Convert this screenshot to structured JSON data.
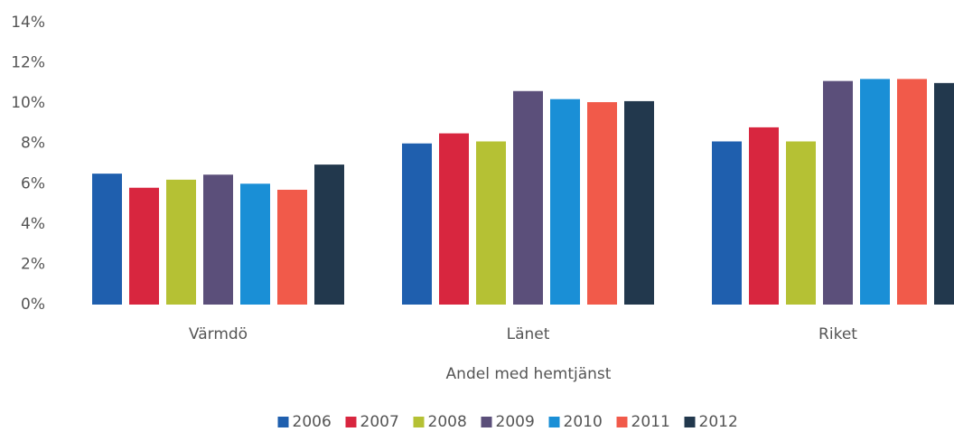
{
  "chart_data": {
    "type": "bar",
    "x_label": "Andel med hemtjänst",
    "categories": [
      "Värmdö",
      "Länet",
      "Riket"
    ],
    "series": [
      {
        "name": "2006",
        "color": "#1f5fae",
        "values": [
          6.5,
          8.0,
          8.1
        ]
      },
      {
        "name": "2007",
        "color": "#d8263f",
        "values": [
          5.8,
          8.5,
          8.8
        ]
      },
      {
        "name": "2008",
        "color": "#b5c134",
        "values": [
          6.2,
          8.1,
          8.1
        ]
      },
      {
        "name": "2009",
        "color": "#5b4f7a",
        "values": [
          6.45,
          10.6,
          11.1
        ]
      },
      {
        "name": "2010",
        "color": "#1a8fd6",
        "values": [
          6.0,
          10.2,
          11.2
        ]
      },
      {
        "name": "2011",
        "color": "#f15a4a",
        "values": [
          5.7,
          10.05,
          11.2
        ]
      },
      {
        "name": "2012",
        "color": "#22384d",
        "values": [
          6.95,
          10.1,
          11.0
        ]
      }
    ],
    "ylim": [
      0,
      14
    ],
    "yticks": [
      {
        "value": 0,
        "label": "0%"
      },
      {
        "value": 2,
        "label": "2%"
      },
      {
        "value": 4,
        "label": "4%"
      },
      {
        "value": 6,
        "label": "6%"
      },
      {
        "value": 8,
        "label": "8%"
      },
      {
        "value": 10,
        "label": "10%"
      },
      {
        "value": 12,
        "label": "12%"
      },
      {
        "value": 14,
        "label": "14%"
      }
    ],
    "grid": false,
    "legend": "bottom"
  }
}
